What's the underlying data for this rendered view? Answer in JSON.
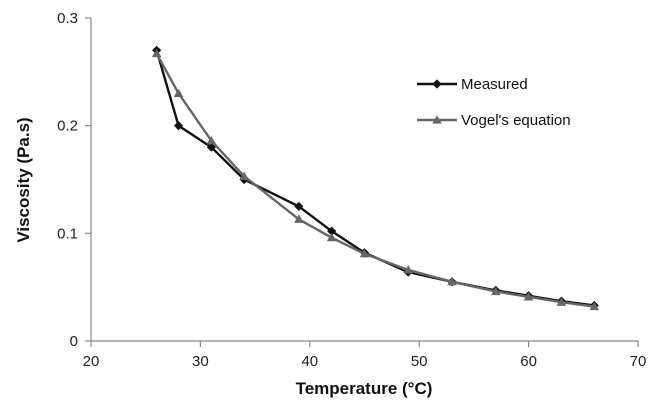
{
  "chart_data": {
    "type": "line",
    "xlabel": "Temperature (°C)",
    "ylabel": "Viscosity (Pa.s)",
    "xlim": [
      20,
      70
    ],
    "ylim": [
      0,
      0.3
    ],
    "x_ticks": [
      20,
      30,
      40,
      50,
      60,
      70
    ],
    "y_ticks": [
      0,
      0.1,
      0.2,
      0.3
    ],
    "x_tick_labels": [
      "20",
      "30",
      "40",
      "50",
      "60",
      "70"
    ],
    "y_tick_labels": [
      "0",
      "0.1",
      "0.2",
      "0.3"
    ],
    "grid": false,
    "legend_position": "top-right",
    "series": [
      {
        "name": "Measured",
        "color": "#111111",
        "marker": "diamond",
        "points": [
          [
            26,
            0.27
          ],
          [
            28,
            0.2
          ],
          [
            31,
            0.18
          ],
          [
            34,
            0.15
          ],
          [
            39,
            0.125
          ],
          [
            42,
            0.102
          ],
          [
            45,
            0.082
          ],
          [
            49,
            0.064
          ],
          [
            53,
            0.055
          ],
          [
            57,
            0.047
          ],
          [
            60,
            0.042
          ],
          [
            63,
            0.037
          ],
          [
            66,
            0.033
          ]
        ]
      },
      {
        "name": "Vogel's equation",
        "color": "#666666",
        "marker": "triangle",
        "points": [
          [
            26,
            0.267
          ],
          [
            28,
            0.23
          ],
          [
            31,
            0.186
          ],
          [
            34,
            0.153
          ],
          [
            39,
            0.113
          ],
          [
            42,
            0.096
          ],
          [
            45,
            0.081
          ],
          [
            49,
            0.066
          ],
          [
            53,
            0.055
          ],
          [
            57,
            0.046
          ],
          [
            60,
            0.041
          ],
          [
            63,
            0.036
          ],
          [
            66,
            0.032
          ]
        ]
      }
    ]
  }
}
